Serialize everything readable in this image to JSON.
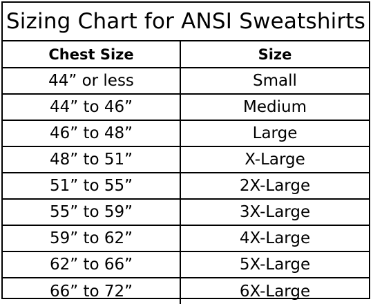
{
  "title": "Sizing Chart for ANSI Sweatshirts",
  "headers": [
    "Chest Size",
    "Size"
  ],
  "rows": [
    [
      "44” or less",
      "Small"
    ],
    [
      "44” to 46”",
      "Medium"
    ],
    [
      "46” to 48”",
      "Large"
    ],
    [
      "48” to 51”",
      "X-Large"
    ],
    [
      "51” to 55”",
      "2X-Large"
    ],
    [
      "55” to 59”",
      "3X-Large"
    ],
    [
      "59” to 62”",
      "4X-Large"
    ],
    [
      "62” to 66”",
      "5X-Large"
    ],
    [
      "66” to 72”",
      "6X-Large"
    ]
  ]
}
